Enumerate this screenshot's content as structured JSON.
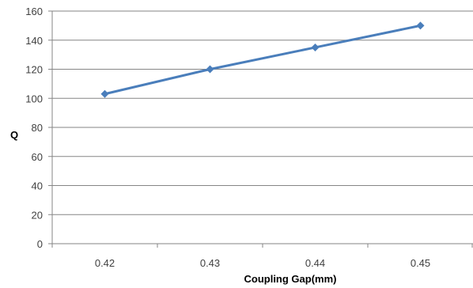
{
  "chart_data": {
    "type": "line",
    "title": "",
    "xlabel": "Coupling Gap(mm)",
    "ylabel": "Q",
    "categories": [
      "0.42",
      "0.43",
      "0.44",
      "0.45"
    ],
    "series": [
      {
        "values": [
          103,
          120,
          135,
          150
        ],
        "marker": "diamond"
      }
    ],
    "ylim": [
      0,
      160
    ],
    "yticks": [
      "0",
      "20",
      "40",
      "60",
      "80",
      "100",
      "120",
      "140",
      "160"
    ],
    "grid": "horizontal",
    "legend": "none",
    "colors": {
      "series": "#4a7ebb",
      "grid": "#868686",
      "axis": "#868686"
    }
  }
}
